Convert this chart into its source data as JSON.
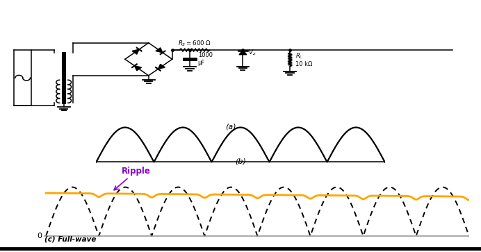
{
  "bg_color": "#ffffff",
  "panel_b_label": "(b)",
  "panel_c_label": "(c) Full-wave",
  "ripple_label": "Ripple",
  "ripple_color": "#8800cc",
  "orange_color": "#FFA500",
  "black": "#000000",
  "gray": "#aaaaaa",
  "panel_a_label": "(a)",
  "n_humps_b": 5,
  "n_cycles_c": 8,
  "ripple_dc": 0.72,
  "ripple_slope": -0.025,
  "ripple_small_amp": 0.06,
  "fw_amplitude": 1.0
}
